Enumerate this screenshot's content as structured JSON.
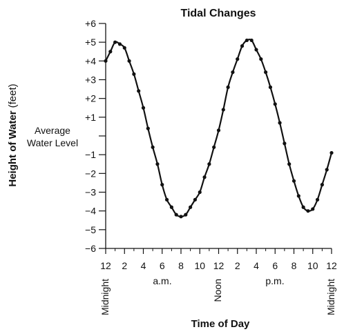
{
  "chart_data": {
    "type": "line",
    "title": "Tidal Changes",
    "xlabel": "Time of Day",
    "ylabel": "Height of Water",
    "ylabel_unit": "(feet)",
    "xlim": [
      0,
      24
    ],
    "ylim": [
      -6,
      6
    ],
    "grid": false,
    "legend": "none",
    "y_ticks": [
      {
        "value": 6,
        "label": "+6"
      },
      {
        "value": 5,
        "label": "+5"
      },
      {
        "value": 4,
        "label": "+4"
      },
      {
        "value": 3,
        "label": "+3"
      },
      {
        "value": 2,
        "label": "+2"
      },
      {
        "value": 1,
        "label": "+1"
      },
      {
        "value": 0,
        "label": ""
      },
      {
        "value": -1,
        "label": "−1"
      },
      {
        "value": -2,
        "label": "−2"
      },
      {
        "value": -3,
        "label": "−3"
      },
      {
        "value": -4,
        "label": "−4"
      },
      {
        "value": -5,
        "label": "−5"
      },
      {
        "value": -6,
        "label": "−6"
      }
    ],
    "x_ticks": [
      {
        "value": 0,
        "label": "12"
      },
      {
        "value": 2,
        "label": "2"
      },
      {
        "value": 4,
        "label": "4"
      },
      {
        "value": 6,
        "label": "6"
      },
      {
        "value": 8,
        "label": "8"
      },
      {
        "value": 10,
        "label": "10"
      },
      {
        "value": 12,
        "label": "12"
      },
      {
        "value": 14,
        "label": "2"
      },
      {
        "value": 16,
        "label": "4"
      },
      {
        "value": 18,
        "label": "6"
      },
      {
        "value": 20,
        "label": "8"
      },
      {
        "value": 22,
        "label": "10"
      },
      {
        "value": 24,
        "label": "12"
      }
    ],
    "annotations": {
      "average_line1": "Average",
      "average_line2": "Water Level",
      "midnight_start": "Midnight",
      "am": "a.m.",
      "noon": "Noon",
      "pm": "p.m.",
      "midnight_end": "Midnight"
    },
    "series": [
      {
        "color": "#111111",
        "x": [
          0,
          0.5,
          1.0,
          1.5,
          2.0,
          2.5,
          3.0,
          3.5,
          4.0,
          4.5,
          5.0,
          5.5,
          6.0,
          6.5,
          7.0,
          7.5,
          8.0,
          8.5,
          9.0,
          9.5,
          10.0,
          10.5,
          11.0,
          11.5,
          12.0,
          12.5,
          13.0,
          13.5,
          14.0,
          14.5,
          15.0,
          15.5,
          16.0,
          16.5,
          17.0,
          17.5,
          18.0,
          18.5,
          19.0,
          19.5,
          20.0,
          20.5,
          21.0,
          21.5,
          22.0,
          22.5,
          23.0,
          23.5,
          24.0
        ],
        "y": [
          4.0,
          4.5,
          5.0,
          4.9,
          4.7,
          4.0,
          3.3,
          2.4,
          1.5,
          0.4,
          -0.6,
          -1.5,
          -2.6,
          -3.4,
          -3.8,
          -4.2,
          -4.3,
          -4.2,
          -3.8,
          -3.4,
          -3.0,
          -2.2,
          -1.5,
          -0.6,
          0.3,
          1.4,
          2.6,
          3.4,
          4.1,
          4.8,
          5.1,
          5.1,
          4.6,
          4.1,
          3.4,
          2.6,
          1.7,
          0.7,
          -0.4,
          -1.5,
          -2.4,
          -3.2,
          -3.8,
          -4.0,
          -3.9,
          -3.4,
          -2.6,
          -1.8,
          -0.9
        ]
      }
    ]
  }
}
